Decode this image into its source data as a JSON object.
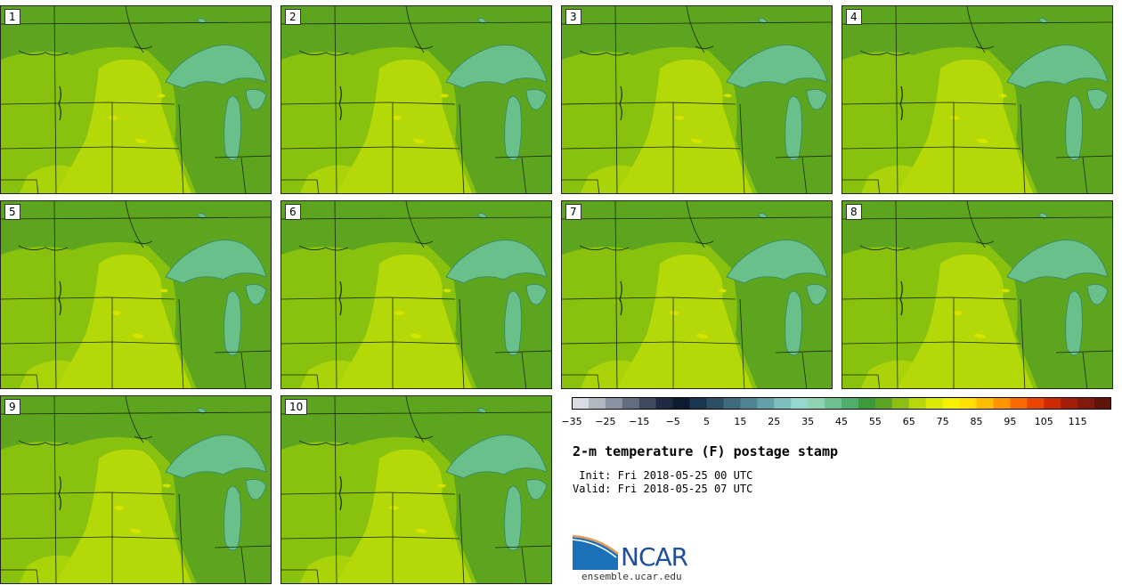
{
  "panels": [
    {
      "label": "1"
    },
    {
      "label": "2"
    },
    {
      "label": "3"
    },
    {
      "label": "4"
    },
    {
      "label": "5"
    },
    {
      "label": "6"
    },
    {
      "label": "7"
    },
    {
      "label": "8"
    },
    {
      "label": "9"
    },
    {
      "label": "10"
    }
  ],
  "map_colors": {
    "land_dark": "#5ea51f",
    "land_mid": "#88c20f",
    "land_warm": "#b5d808",
    "land_hot": "#d6e400",
    "lake": "#6ac08a",
    "lake_edge": "#3c8f5c",
    "border": "#1a2a0a"
  },
  "colorbar": {
    "tick_labels": [
      "−35",
      "−25",
      "−15",
      "−5",
      "5",
      "15",
      "25",
      "35",
      "45",
      "55",
      "65",
      "75",
      "85",
      "95",
      "105",
      "115"
    ],
    "colors": [
      "#d9dde3",
      "#b2b8c2",
      "#8a93a2",
      "#636d80",
      "#3e4960",
      "#1f2a42",
      "#0e1a30",
      "#1a3550",
      "#2c4f66",
      "#3e6a7c",
      "#4f8593",
      "#62a1aa",
      "#7bbfbd",
      "#94d8cf",
      "#8fd3b3",
      "#6ec292",
      "#4fae6c",
      "#3d9a3a",
      "#5ca522",
      "#8cbf12",
      "#b8d80a",
      "#dbea05",
      "#f4f200",
      "#ffe000",
      "#ffbd00",
      "#ff9400",
      "#fb6a00",
      "#ea4400",
      "#cc2a05",
      "#a61c0a",
      "#80180c",
      "#5e1408"
    ]
  },
  "title": "2-m temperature (F) postage stamp",
  "init_line": " Init: Fri 2018-05-25 00 UTC",
  "valid_line": "Valid: Fri 2018-05-25 07 UTC",
  "logo_text": "NCAR",
  "site": "ensemble.ucar.edu"
}
